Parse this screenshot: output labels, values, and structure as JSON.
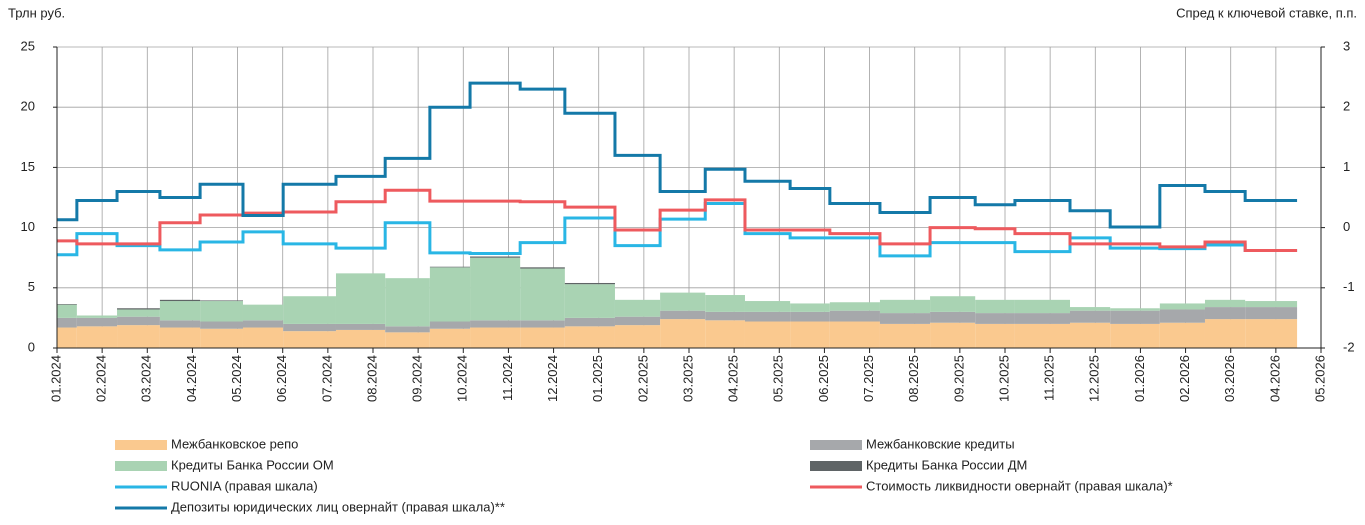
{
  "chart_data": {
    "type": "step",
    "y_label": "Трлн руб.",
    "y2_label": "Спред к ключевой ставке, п.п.",
    "x": [
      0,
      0.44,
      1.33,
      2.28,
      3.17,
      4.12,
      5.01,
      6.18,
      7.27,
      8.26,
      9.15,
      10.26,
      11.25,
      12.36,
      13.36,
      14.36,
      15.24,
      16.24,
      17.12,
      18.23,
      19.34,
      20.34,
      21.22,
      22.44,
      23.33,
      24.43,
      25.43,
      26.32,
      27.47
    ],
    "xlim": [
      0,
      28
    ],
    "xticks": [
      {
        "value": 0,
        "label": "01.2024"
      },
      {
        "value": 1,
        "label": "02.2024"
      },
      {
        "value": 2,
        "label": "03.2024"
      },
      {
        "value": 3,
        "label": "04.2024"
      },
      {
        "value": 4,
        "label": "05.2024"
      },
      {
        "value": 5,
        "label": "06.2024"
      },
      {
        "value": 6,
        "label": "07.2024"
      },
      {
        "value": 7,
        "label": "08.2024"
      },
      {
        "value": 8,
        "label": "09.2024"
      },
      {
        "value": 9,
        "label": "10.2024"
      },
      {
        "value": 10,
        "label": "11.2024"
      },
      {
        "value": 11,
        "label": "12.2024"
      },
      {
        "value": 12,
        "label": "01.2025"
      },
      {
        "value": 13,
        "label": "02.2025"
      },
      {
        "value": 14,
        "label": "03.2025"
      },
      {
        "value": 15,
        "label": "04.2025"
      },
      {
        "value": 16,
        "label": "05.2025"
      },
      {
        "value": 17,
        "label": "06.2025"
      },
      {
        "value": 18,
        "label": "07.2025"
      },
      {
        "value": 19,
        "label": "08.2025"
      },
      {
        "value": 20,
        "label": "09.2025"
      },
      {
        "value": 21,
        "label": "10.2025"
      },
      {
        "value": 22,
        "label": "11.2025"
      },
      {
        "value": 23,
        "label": "12.2025"
      },
      {
        "value": 24,
        "label": "01.2026"
      },
      {
        "value": 25,
        "label": "02.2026"
      },
      {
        "value": 26,
        "label": "03.2026"
      },
      {
        "value": 27,
        "label": "04.2026"
      },
      {
        "value": 28,
        "label": "05.2026"
      }
    ],
    "ylim": [
      0,
      25
    ],
    "yticks": [
      0,
      5,
      10,
      15,
      20,
      25
    ],
    "y2lim": [
      -2,
      3
    ],
    "y2ticks": [
      -2,
      -1,
      0,
      1,
      2,
      3
    ],
    "grid": true,
    "series": [
      {
        "name": "Межбанковское репо",
        "kind": "area",
        "color": "#fac98f",
        "values": [
          1.7,
          1.8,
          1.9,
          1.7,
          1.6,
          1.7,
          1.4,
          1.5,
          1.3,
          1.6,
          1.7,
          1.7,
          1.8,
          1.9,
          2.4,
          2.3,
          2.2,
          2.2,
          2.2,
          2.0,
          2.1,
          2.0,
          2.0,
          2.1,
          2.0,
          2.1,
          2.4,
          2.4,
          2.4
        ]
      },
      {
        "name": "Межбанковские кредиты",
        "kind": "area",
        "color": "#a6a8ab",
        "values": [
          0.8,
          0.7,
          0.7,
          0.6,
          0.6,
          0.6,
          0.6,
          0.5,
          0.5,
          0.6,
          0.6,
          0.6,
          0.7,
          0.7,
          0.7,
          0.7,
          0.8,
          0.8,
          0.9,
          0.9,
          0.9,
          0.9,
          0.9,
          1.0,
          1.1,
          1.1,
          1.0,
          1.0,
          1.0
        ]
      },
      {
        "name": "Кредиты Банка России ОМ",
        "kind": "area",
        "color": "#a9d3b3",
        "values": [
          1.1,
          0.2,
          0.6,
          1.6,
          1.7,
          1.3,
          2.3,
          4.2,
          4.0,
          4.5,
          5.2,
          4.3,
          2.8,
          1.4,
          1.5,
          1.4,
          0.9,
          0.7,
          0.7,
          1.1,
          1.3,
          1.1,
          1.1,
          0.3,
          0.2,
          0.5,
          0.6,
          0.5,
          0.5
        ]
      },
      {
        "name": "Кредиты Банка России ДМ",
        "kind": "area",
        "color": "#5f6466",
        "values": [
          0.05,
          0,
          0.1,
          0.1,
          0.05,
          0,
          0,
          0,
          0,
          0.05,
          0.1,
          0.1,
          0.1,
          0,
          0,
          0,
          0,
          0,
          0,
          0,
          0,
          0,
          0,
          0,
          0,
          0,
          0,
          0,
          0
        ]
      },
      {
        "name": "RUONIA (правая шкала)",
        "kind": "line",
        "axis": "y2",
        "color": "#29b6e5",
        "values": [
          -0.45,
          -0.1,
          -0.3,
          -0.37,
          -0.24,
          -0.07,
          -0.27,
          -0.34,
          0.08,
          -0.42,
          -0.43,
          -0.25,
          0.16,
          -0.3,
          0.14,
          0.4,
          -0.1,
          -0.17,
          -0.17,
          -0.47,
          -0.25,
          -0.25,
          -0.4,
          -0.17,
          -0.34,
          -0.35,
          -0.29,
          -0.38,
          -0.38
        ]
      },
      {
        "name": "Стоимость ликвидности овернайт (правая шкала)*",
        "kind": "line",
        "axis": "y2",
        "color": "#ee5a5e",
        "values": [
          -0.22,
          -0.27,
          -0.27,
          0.08,
          0.21,
          0.24,
          0.26,
          0.43,
          0.62,
          0.44,
          0.44,
          0.43,
          0.34,
          -0.04,
          0.29,
          0.46,
          -0.04,
          -0.04,
          -0.1,
          -0.27,
          0.0,
          -0.02,
          -0.1,
          -0.27,
          -0.27,
          -0.32,
          -0.24,
          -0.38,
          -0.38
        ]
      },
      {
        "name": "Депозиты юридических лиц овернайт (правая шкала)**",
        "kind": "line",
        "axis": "y2",
        "color": "#1479a8",
        "values": [
          0.13,
          0.45,
          0.6,
          0.5,
          0.72,
          0.2,
          0.72,
          0.85,
          1.15,
          2.0,
          2.4,
          2.3,
          1.9,
          1.2,
          0.6,
          0.97,
          0.77,
          0.65,
          0.4,
          0.25,
          0.5,
          0.38,
          0.45,
          0.28,
          0.01,
          0.7,
          0.6,
          0.45,
          0.45
        ]
      }
    ]
  }
}
